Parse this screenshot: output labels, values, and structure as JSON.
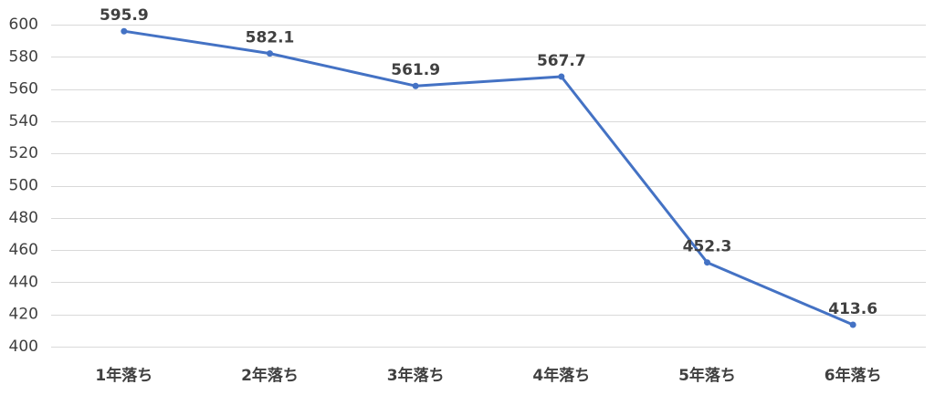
{
  "chart_data": {
    "type": "line",
    "title": "",
    "xlabel": "",
    "ylabel": "",
    "categories": [
      "1年落ち",
      "2年落ち",
      "3年落ち",
      "4年落ち",
      "5年落ち",
      "6年落ち"
    ],
    "series": [
      {
        "values": [
          595.9,
          582.1,
          561.9,
          567.7,
          452.3,
          413.6
        ],
        "data_labels": [
          "595.9",
          "582.1",
          "561.9",
          "567.7",
          "452.3",
          "413.6"
        ],
        "color": "#4472c4",
        "markers": true
      }
    ],
    "ylim": [
      400,
      600
    ],
    "y_ticks": [
      "400",
      "420",
      "440",
      "460",
      "480",
      "500",
      "520",
      "540",
      "560",
      "580",
      "600"
    ],
    "grid": "horizontal",
    "legend": "none"
  }
}
